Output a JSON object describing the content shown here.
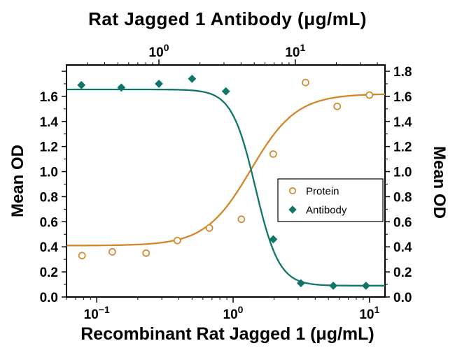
{
  "chart_data": {
    "type": "line",
    "title": "Rat Jagged 1 Antibody (μg/mL)",
    "xlabel": "Recombinant Rat Jagged 1 (μg/mL)",
    "ylabel_left": "Mean OD",
    "ylabel_right": "Mean OD",
    "background_color": "#ffffff",
    "axis_color": "#000000",
    "grid": false,
    "x_axis_bottom": {
      "scale": "log",
      "min": 0.06,
      "max": 13,
      "label_exponents": [
        -1,
        0,
        1
      ]
    },
    "x_axis_top": {
      "scale": "log",
      "min": 0.21,
      "max": 45.5,
      "label_exponents": [
        0,
        1
      ]
    },
    "y_axis": {
      "min": 0,
      "max": 1.85,
      "major_ticks": [
        0,
        0.2,
        0.4,
        0.6,
        0.8,
        1.0,
        1.2,
        1.4,
        1.6,
        1.8
      ],
      "minor_ticks": [
        0.1,
        0.3,
        0.5,
        0.7,
        0.9,
        1.1,
        1.3,
        1.5,
        1.7
      ],
      "left_labels": [
        0,
        0.2,
        0.4,
        0.6,
        0.8,
        1.0,
        1.2,
        1.4,
        1.6
      ],
      "right_labels": [
        0,
        0.2,
        0.4,
        0.6,
        0.8,
        1.0,
        1.2,
        1.4,
        1.6,
        1.8
      ]
    },
    "series": [
      {
        "name": "Protein",
        "x_axis": "bottom",
        "marker": "open-circle",
        "color": "#D4862B",
        "x": [
          0.078,
          0.13,
          0.23,
          0.39,
          0.67,
          1.15,
          1.97,
          3.4,
          5.8,
          10
        ],
        "y": [
          0.33,
          0.36,
          0.35,
          0.45,
          0.55,
          0.62,
          1.14,
          1.71,
          1.52,
          1.61
        ],
        "fit": {
          "type": "4PL",
          "bottom": 0.41,
          "top": 1.62,
          "ec50": 1.35,
          "hill": -2.6
        }
      },
      {
        "name": "Antibody",
        "x_axis": "top",
        "marker": "filled-diamond",
        "color": "#11766A",
        "x": [
          0.27,
          0.53,
          1.0,
          1.75,
          3.1,
          6.9,
          11,
          19,
          33
        ],
        "y": [
          1.69,
          1.67,
          1.7,
          1.74,
          1.64,
          0.46,
          0.11,
          0.09,
          0.09
        ],
        "fit": {
          "type": "4PL",
          "bottom": 0.09,
          "top": 1.655,
          "ec50": 5.1,
          "hill": 5
        }
      }
    ],
    "legend": {
      "position": "right-center",
      "items": [
        "Protein",
        "Antibody"
      ]
    }
  }
}
